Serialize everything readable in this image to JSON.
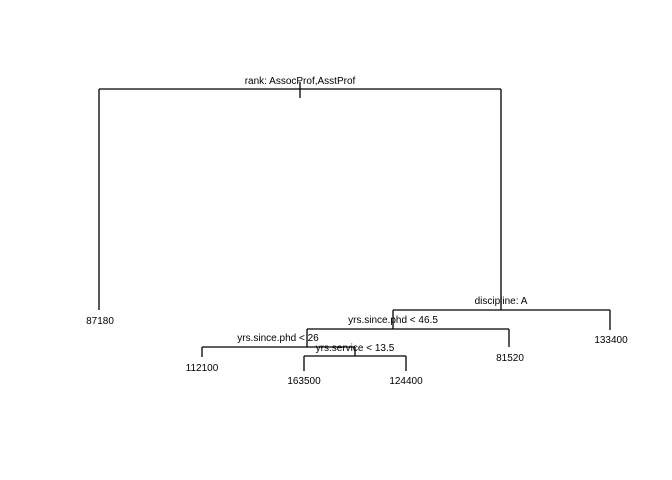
{
  "tree": {
    "splits": {
      "root": "rank: AssocProf,AsstProf",
      "discipline": "discipline: A",
      "yrs_phd_46": "yrs.since.phd < 46.5",
      "yrs_phd_26": "yrs.since.phd < 26",
      "yrs_service": "yrs.service < 13.5"
    },
    "leaves": {
      "leaf_1": "87180",
      "leaf_2": "112100",
      "leaf_3": "163500",
      "leaf_4": "124400",
      "leaf_5": "81520",
      "leaf_6": "133400"
    }
  }
}
